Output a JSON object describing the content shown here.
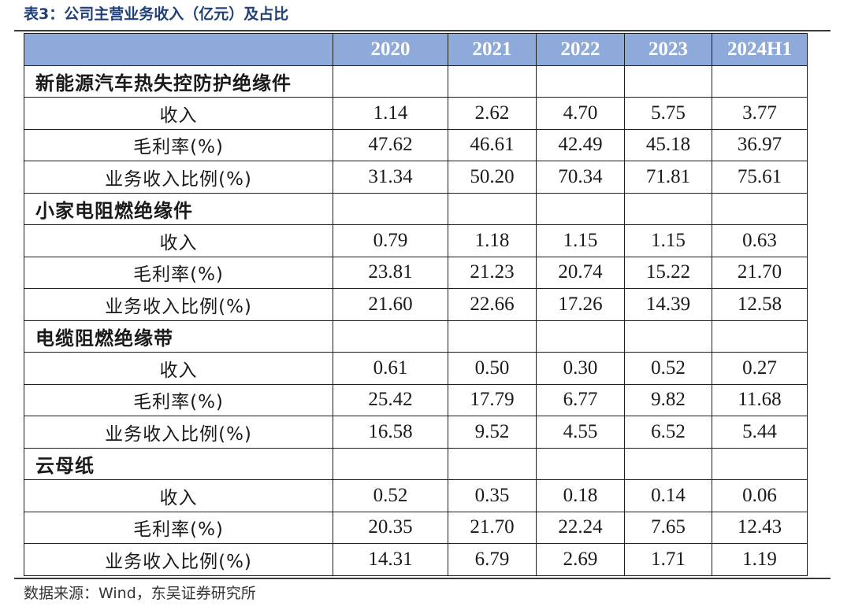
{
  "caption": "表3：公司主营业务收入（亿元）及占比",
  "columns": {
    "label": "",
    "years": [
      "2020",
      "2021",
      "2022",
      "2023",
      "2024H1"
    ]
  },
  "sections": [
    {
      "name": "新能源汽车热失控防护绝缘件",
      "rows": [
        {
          "label": "收入",
          "values": [
            "1.14",
            "2.62",
            "4.70",
            "5.75",
            "3.77"
          ]
        },
        {
          "label": "毛利率(%)",
          "values": [
            "47.62",
            "46.61",
            "42.49",
            "45.18",
            "36.97"
          ]
        },
        {
          "label": "业务收入比例(%)",
          "values": [
            "31.34",
            "50.20",
            "70.34",
            "71.81",
            "75.61"
          ]
        }
      ]
    },
    {
      "name": "小家电阻燃绝缘件",
      "rows": [
        {
          "label": "收入",
          "values": [
            "0.79",
            "1.18",
            "1.15",
            "1.15",
            "0.63"
          ]
        },
        {
          "label": "毛利率(%)",
          "values": [
            "23.81",
            "21.23",
            "20.74",
            "15.22",
            "21.70"
          ]
        },
        {
          "label": "业务收入比例(%)",
          "values": [
            "21.60",
            "22.66",
            "17.26",
            "14.39",
            "12.58"
          ]
        }
      ]
    },
    {
      "name": "电缆阻燃绝缘带",
      "rows": [
        {
          "label": "收入",
          "values": [
            "0.61",
            "0.50",
            "0.30",
            "0.52",
            "0.27"
          ]
        },
        {
          "label": "毛利率(%)",
          "values": [
            "25.42",
            "17.79",
            "6.77",
            "9.82",
            "11.68"
          ]
        },
        {
          "label": "业务收入比例(%)",
          "values": [
            "16.58",
            "9.52",
            "4.55",
            "6.52",
            "5.44"
          ]
        }
      ]
    },
    {
      "name": "云母纸",
      "rows": [
        {
          "label": "收入",
          "values": [
            "0.52",
            "0.35",
            "0.18",
            "0.14",
            "0.06"
          ]
        },
        {
          "label": "毛利率(%)",
          "values": [
            "20.35",
            "21.70",
            "22.24",
            "7.65",
            "12.43"
          ]
        },
        {
          "label": "业务收入比例(%)",
          "values": [
            "14.31",
            "6.79",
            "2.69",
            "1.71",
            "1.19"
          ]
        }
      ]
    }
  ],
  "source": "数据来源：Wind，东吴证券研究所",
  "colors": {
    "header_bg": "#8eaadb",
    "header_text": "#ffffff",
    "caption_text": "#1f3f7a",
    "border": "#1e1e1e"
  }
}
